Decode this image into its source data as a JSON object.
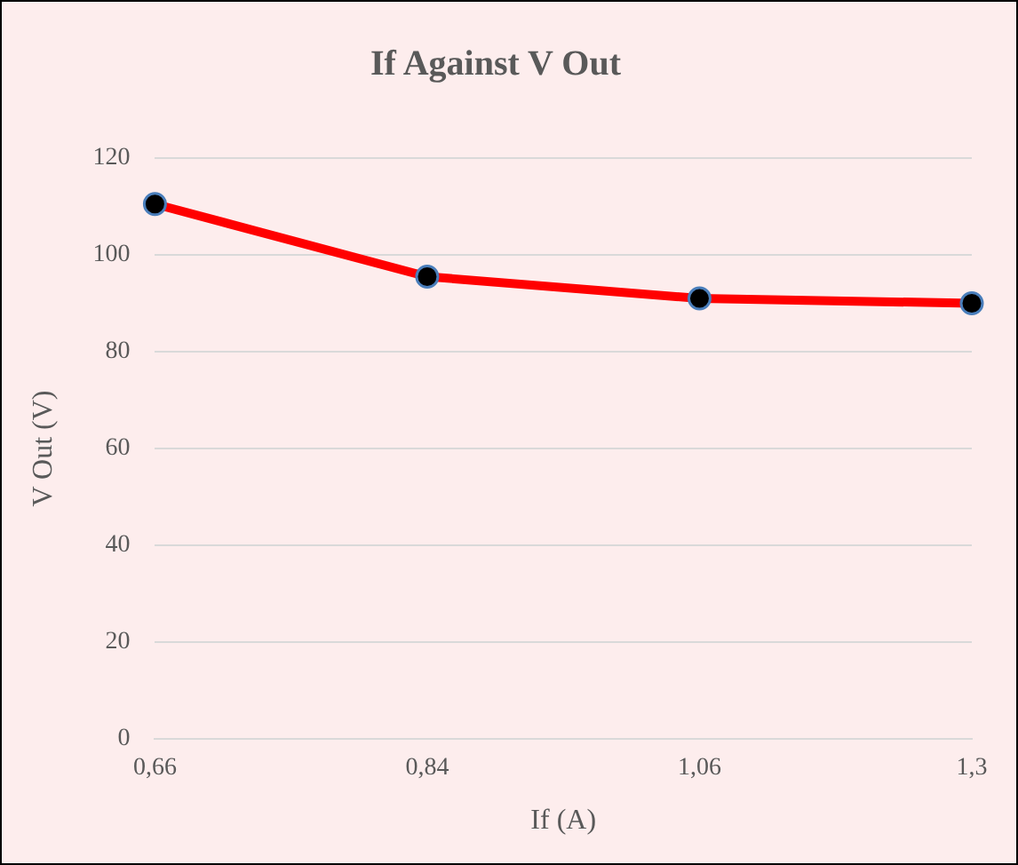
{
  "chart_data": {
    "type": "line",
    "title": "If Against V Out",
    "xlabel": "If (A)",
    "ylabel": "V Out (V)",
    "categories": [
      "0,66",
      "0,84",
      "1,06",
      "1,3"
    ],
    "series": [
      {
        "color": "#ff0000",
        "values": [
          110.5,
          95.5,
          91,
          90
        ]
      }
    ],
    "ylim": [
      0,
      120
    ],
    "yticks": [
      0,
      20,
      40,
      60,
      80,
      100,
      120
    ],
    "grid": "y",
    "legend": false,
    "marker": "circle",
    "line_style": "solid"
  }
}
